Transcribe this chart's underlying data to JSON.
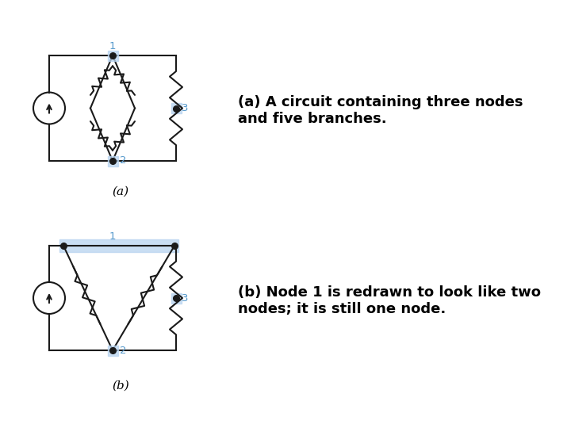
{
  "bg_color": "#ffffff",
  "text_color": "#000000",
  "node_color": "#1a1a1a",
  "wire_color": "#1a1a1a",
  "resistor_color": "#1a1a1a",
  "highlight_color": "#b8d4f0",
  "label_color": "#5599cc",
  "caption_a": "(a)",
  "caption_b": "(b)",
  "text_a": "(a) A circuit containing three nodes\nand five branches.",
  "text_b": "(b) Node 1 is redrawn to look like two\nnodes; it is still one node.",
  "font_size_caption": 11,
  "font_size_text": 13
}
